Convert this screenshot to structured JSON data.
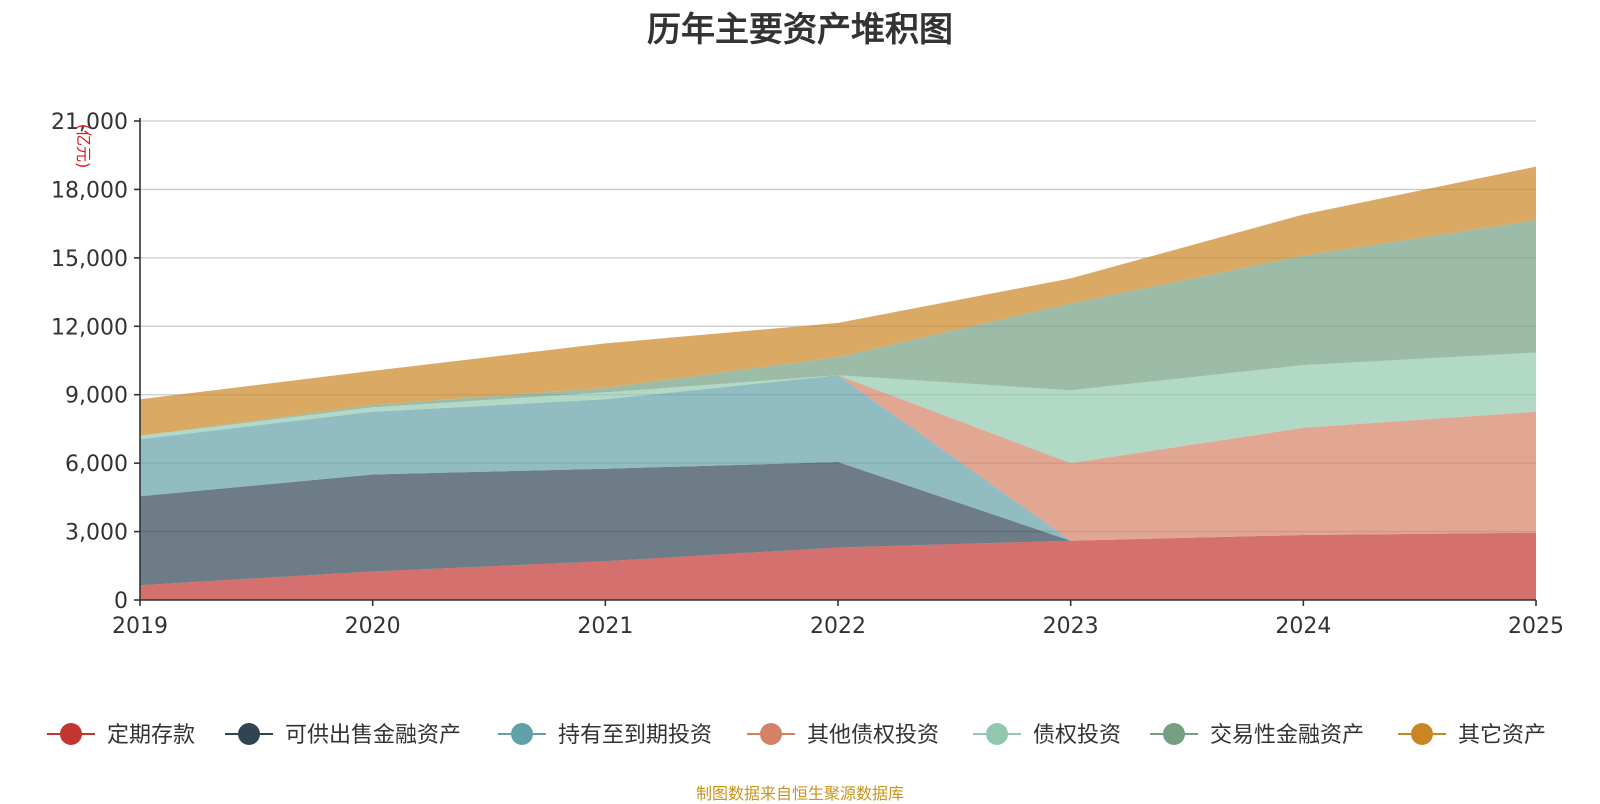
{
  "chart_data": {
    "type": "area",
    "stacked": true,
    "title": "历年主要资产堆积图",
    "unit": "(亿元)",
    "xlabel": "",
    "ylabel": "(亿元)",
    "x": [
      "2019",
      "2020",
      "2021",
      "2022",
      "2023",
      "2024",
      "2025"
    ],
    "ylim": [
      0,
      21000
    ],
    "yticks": [
      0,
      3000,
      6000,
      9000,
      12000,
      15000,
      18000,
      21000
    ],
    "ytick_labels": [
      "0",
      "3,000",
      "6,000",
      "9,000",
      "12,000",
      "15,000",
      "18,000",
      "21,000"
    ],
    "grid": true,
    "legend_position": "bottom",
    "series": [
      {
        "name": "定期存款",
        "color": "#c23531",
        "values": [
          650,
          1250,
          1700,
          2300,
          2600,
          2850,
          2950
        ]
      },
      {
        "name": "可供出售金融资产",
        "color": "#2f4554",
        "values": [
          3900,
          4250,
          4050,
          3750,
          0,
          0,
          0
        ]
      },
      {
        "name": "持有至到期投资",
        "color": "#61a0a8",
        "values": [
          2500,
          2750,
          3050,
          3800,
          0,
          0,
          0
        ]
      },
      {
        "name": "其他债权投资",
        "color": "#d48265",
        "values": [
          0,
          0,
          0,
          0,
          3400,
          4700,
          5300
        ]
      },
      {
        "name": "债权投资",
        "color": "#91c7ae",
        "values": [
          150,
          200,
          300,
          0,
          3200,
          2750,
          2600
        ]
      },
      {
        "name": "交易性金融资产",
        "color": "#749f83",
        "values": [
          0,
          100,
          200,
          800,
          3800,
          4800,
          5800
        ]
      },
      {
        "name": "其它资产",
        "color": "#ca8622",
        "values": [
          1600,
          1500,
          1950,
          1500,
          1100,
          1800,
          2350
        ]
      }
    ]
  },
  "source_note": "制图数据来自恒生聚源数据库",
  "source_color": "#c8941e"
}
